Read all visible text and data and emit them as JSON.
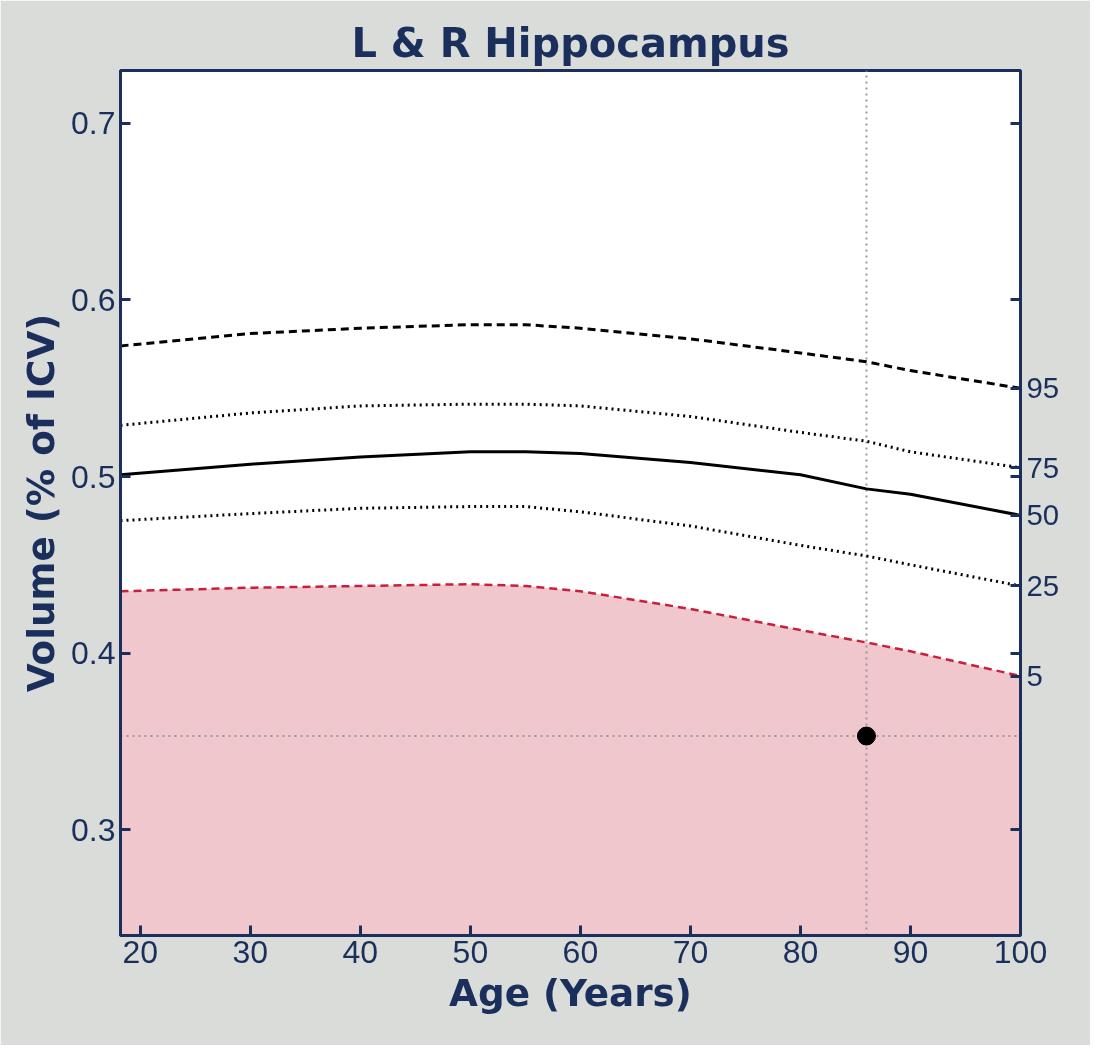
{
  "chart_data": {
    "type": "line",
    "title": "L & R Hippocampus",
    "xlabel": "Age (Years)",
    "ylabel": "Volume (% of ICV)",
    "x": [
      18.2,
      30,
      40,
      50,
      55,
      60,
      70,
      80,
      86,
      90,
      100
    ],
    "series": [
      {
        "color": "#000000",
        "line_style": "dashed",
        "values": [
          0.574,
          0.581,
          0.584,
          0.586,
          0.586,
          0.584,
          0.578,
          0.57,
          0.565,
          0.56,
          0.55
        ]
      },
      {
        "color": "#000000",
        "line_style": "dotted",
        "values": [
          0.529,
          0.536,
          0.54,
          0.541,
          0.541,
          0.54,
          0.534,
          0.525,
          0.52,
          0.514,
          0.505
        ]
      },
      {
        "color": "#000000",
        "line_style": "solid",
        "values": [
          0.501,
          0.507,
          0.511,
          0.514,
          0.514,
          0.513,
          0.508,
          0.501,
          0.493,
          0.49,
          0.478
        ]
      },
      {
        "color": "#000000",
        "line_style": "dotted",
        "values": [
          0.475,
          0.479,
          0.482,
          0.483,
          0.483,
          0.48,
          0.472,
          0.461,
          0.455,
          0.45,
          0.438
        ]
      },
      {
        "type": "area",
        "color": "#c8203c",
        "line_style": "dashed",
        "values": [
          0.435,
          0.437,
          0.438,
          0.439,
          0.438,
          0.435,
          0.425,
          0.413,
          0.406,
          0.401,
          0.387
        ]
      },
      {
        "type": "scatter",
        "color": "#000000",
        "marker": "circle",
        "x": [
          86
        ],
        "values": [
          0.353
        ]
      }
    ],
    "annotations": [
      "95",
      "75",
      "50",
      "25",
      "5"
    ],
    "ref_lines": [
      {
        "axis": "x",
        "value": 86,
        "color": "#999999",
        "line_style": "dotted"
      },
      {
        "axis": "y",
        "value": 0.353,
        "color": "#999999",
        "line_style": "dotted"
      }
    ],
    "xlim": [
      18.2,
      100
    ],
    "ylim": [
      0.24,
      0.73
    ],
    "xticks": [
      20,
      30,
      40,
      50,
      60,
      70,
      80,
      90,
      100
    ],
    "yticks": [
      0.3,
      0.4,
      0.5,
      0.6,
      0.7
    ],
    "grid": false
  }
}
